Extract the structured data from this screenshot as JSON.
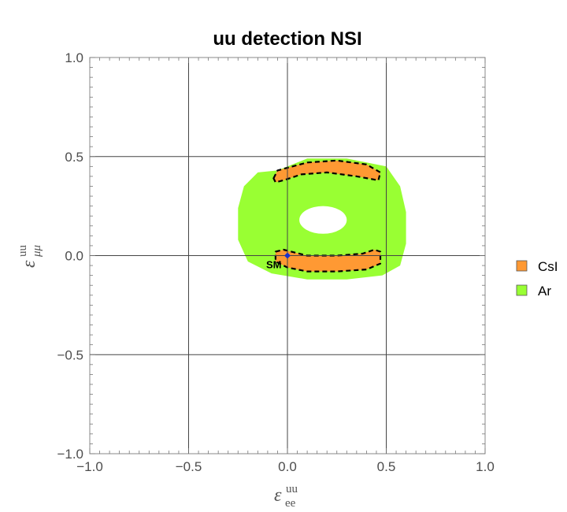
{
  "chart_data": {
    "type": "contour",
    "title": "uu detection NSI",
    "xlabel": {
      "symbol": "ε",
      "sub": "ee",
      "sup": "uu"
    },
    "ylabel": {
      "symbol": "ε",
      "sub": "μμ",
      "sup": "uu"
    },
    "xlim": [
      -1.0,
      1.0
    ],
    "ylim": [
      -1.0,
      1.0
    ],
    "xticks": [
      -1.0,
      -0.5,
      0.0,
      0.5,
      1.0
    ],
    "yticks": [
      -1.0,
      -0.5,
      0.0,
      0.5,
      1.0
    ],
    "xtick_labels": [
      "−1.0",
      "−0.5",
      "0.0",
      "0.5",
      "1.0"
    ],
    "ytick_labels": [
      "−1.0",
      "−0.5",
      "0.0",
      "0.5",
      "1.0"
    ],
    "grid_lines": [
      -0.5,
      0.0,
      0.5
    ],
    "legend_position": "right",
    "series": [
      {
        "name": "Ar",
        "color": "#99ff33",
        "region": {
          "outer": [
            [
              -0.05,
              0.43
            ],
            [
              0.1,
              0.49
            ],
            [
              0.3,
              0.49
            ],
            [
              0.5,
              0.45
            ],
            [
              0.57,
              0.35
            ],
            [
              0.6,
              0.22
            ],
            [
              0.6,
              0.06
            ],
            [
              0.57,
              -0.05
            ],
            [
              0.48,
              -0.1
            ],
            [
              0.3,
              -0.12
            ],
            [
              0.1,
              -0.12
            ],
            [
              -0.08,
              -0.09
            ],
            [
              -0.2,
              -0.03
            ],
            [
              -0.25,
              0.08
            ],
            [
              -0.25,
              0.24
            ],
            [
              -0.22,
              0.35
            ],
            [
              -0.15,
              0.42
            ]
          ],
          "hole": {
            "center": [
              0.18,
              0.18
            ],
            "radii": [
              0.12,
              0.07
            ]
          }
        }
      },
      {
        "name": "CsI",
        "color": "#ff9933",
        "regions": [
          [
            [
              -0.07,
              0.39
            ],
            [
              -0.05,
              0.43
            ],
            [
              0.1,
              0.47
            ],
            [
              0.25,
              0.48
            ],
            [
              0.4,
              0.46
            ],
            [
              0.47,
              0.42
            ],
            [
              0.46,
              0.38
            ],
            [
              0.35,
              0.4
            ],
            [
              0.2,
              0.42
            ],
            [
              0.07,
              0.41
            ],
            [
              -0.02,
              0.38
            ],
            [
              -0.06,
              0.37
            ]
          ],
          [
            [
              -0.06,
              0.02
            ],
            [
              -0.02,
              0.03
            ],
            [
              0.1,
              0.0
            ],
            [
              0.25,
              0.0
            ],
            [
              0.38,
              0.01
            ],
            [
              0.44,
              0.03
            ],
            [
              0.47,
              0.02
            ],
            [
              0.47,
              -0.04
            ],
            [
              0.4,
              -0.07
            ],
            [
              0.25,
              -0.08
            ],
            [
              0.1,
              -0.08
            ],
            [
              0.0,
              -0.06
            ],
            [
              -0.06,
              -0.03
            ]
          ]
        ]
      }
    ],
    "points": [
      {
        "label": "SM",
        "x": 0.0,
        "y": 0.0,
        "color": "#1a33cc"
      }
    ]
  }
}
